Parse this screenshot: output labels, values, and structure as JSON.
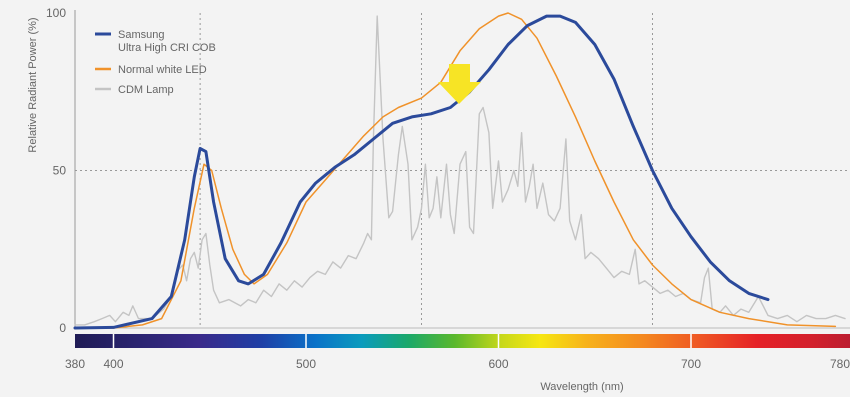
{
  "chart_data": {
    "type": "line",
    "xlabel": "Wavelength (nm)",
    "ylabel": "Relative Radiant Power (%)",
    "xlim": [
      380,
      780
    ],
    "ylim": [
      0,
      100
    ],
    "x_ticks": [
      380,
      400,
      500,
      600,
      700,
      780
    ],
    "y_ticks": [
      0,
      50,
      100
    ],
    "grid": "dotted at 445, 560, 680 nm and 50%",
    "legend_position": "top-left",
    "series": [
      {
        "name": "Samsung Ultra High CRI COB",
        "legend_lines": [
          "Samsung",
          "Ultra High CRI COB"
        ],
        "color": "#2b4a9b",
        "points": [
          [
            380,
            0
          ],
          [
            400,
            0.2
          ],
          [
            420,
            3
          ],
          [
            430,
            10
          ],
          [
            437,
            28
          ],
          [
            442,
            48
          ],
          [
            445,
            57
          ],
          [
            448,
            56
          ],
          [
            452,
            40
          ],
          [
            458,
            22
          ],
          [
            465,
            15
          ],
          [
            470,
            14
          ],
          [
            478,
            17
          ],
          [
            487,
            27
          ],
          [
            497,
            40
          ],
          [
            505,
            46
          ],
          [
            515,
            51
          ],
          [
            525,
            55
          ],
          [
            535,
            60
          ],
          [
            545,
            65
          ],
          [
            555,
            67
          ],
          [
            565,
            68
          ],
          [
            575,
            70
          ],
          [
            585,
            75
          ],
          [
            595,
            82
          ],
          [
            605,
            90
          ],
          [
            615,
            96
          ],
          [
            625,
            99
          ],
          [
            632,
            99
          ],
          [
            640,
            97
          ],
          [
            650,
            90
          ],
          [
            660,
            79
          ],
          [
            670,
            64
          ],
          [
            680,
            50
          ],
          [
            690,
            38
          ],
          [
            700,
            29
          ],
          [
            710,
            21
          ],
          [
            720,
            15
          ],
          [
            730,
            11
          ],
          [
            740,
            9
          ]
        ]
      },
      {
        "name": "Normal white LED",
        "color": "#f0922a",
        "points": [
          [
            380,
            0
          ],
          [
            400,
            0
          ],
          [
            415,
            1
          ],
          [
            425,
            3
          ],
          [
            435,
            15
          ],
          [
            442,
            38
          ],
          [
            447,
            52
          ],
          [
            451,
            50
          ],
          [
            456,
            38
          ],
          [
            462,
            25
          ],
          [
            468,
            17
          ],
          [
            473,
            14
          ],
          [
            480,
            17
          ],
          [
            490,
            27
          ],
          [
            500,
            40
          ],
          [
            510,
            47
          ],
          [
            520,
            54
          ],
          [
            530,
            61
          ],
          [
            540,
            67
          ],
          [
            548,
            70
          ],
          [
            560,
            73
          ],
          [
            570,
            78
          ],
          [
            580,
            88
          ],
          [
            590,
            95
          ],
          [
            600,
            99
          ],
          [
            605,
            100
          ],
          [
            612,
            98
          ],
          [
            620,
            92
          ],
          [
            630,
            80
          ],
          [
            640,
            67
          ],
          [
            650,
            53
          ],
          [
            660,
            40
          ],
          [
            670,
            28
          ],
          [
            680,
            20
          ],
          [
            690,
            14
          ],
          [
            700,
            9
          ],
          [
            715,
            5
          ],
          [
            730,
            3
          ],
          [
            750,
            1
          ],
          [
            775,
            0.5
          ]
        ]
      },
      {
        "name": "CDM Lamp",
        "color": "#c4c4c4",
        "points": [
          [
            380,
            1
          ],
          [
            385,
            1
          ],
          [
            390,
            2
          ],
          [
            394,
            3
          ],
          [
            398,
            4
          ],
          [
            401,
            2
          ],
          [
            405,
            5
          ],
          [
            408,
            4
          ],
          [
            410,
            7
          ],
          [
            413,
            3
          ],
          [
            420,
            3
          ],
          [
            426,
            6
          ],
          [
            430,
            10
          ],
          [
            433,
            18
          ],
          [
            436,
            20
          ],
          [
            438,
            15
          ],
          [
            440,
            22
          ],
          [
            442,
            24
          ],
          [
            444,
            19
          ],
          [
            446,
            28
          ],
          [
            448,
            30
          ],
          [
            450,
            20
          ],
          [
            452,
            12
          ],
          [
            455,
            8
          ],
          [
            460,
            9
          ],
          [
            466,
            7
          ],
          [
            470,
            9
          ],
          [
            474,
            8
          ],
          [
            478,
            12
          ],
          [
            482,
            10
          ],
          [
            486,
            14
          ],
          [
            490,
            12
          ],
          [
            494,
            15
          ],
          [
            498,
            13
          ],
          [
            502,
            16
          ],
          [
            506,
            18
          ],
          [
            510,
            17
          ],
          [
            514,
            21
          ],
          [
            518,
            19
          ],
          [
            522,
            23
          ],
          [
            526,
            22
          ],
          [
            530,
            27
          ],
          [
            532,
            30
          ],
          [
            534,
            28
          ],
          [
            535,
            60
          ],
          [
            537,
            99
          ],
          [
            540,
            60
          ],
          [
            543,
            35
          ],
          [
            545,
            37
          ],
          [
            548,
            55
          ],
          [
            550,
            64
          ],
          [
            553,
            52
          ],
          [
            555,
            28
          ],
          [
            558,
            32
          ],
          [
            560,
            38
          ],
          [
            562,
            52
          ],
          [
            564,
            35
          ],
          [
            566,
            38
          ],
          [
            568,
            48
          ],
          [
            570,
            35
          ],
          [
            573,
            52
          ],
          [
            575,
            36
          ],
          [
            577,
            30
          ],
          [
            580,
            52
          ],
          [
            583,
            56
          ],
          [
            585,
            32
          ],
          [
            587,
            30
          ],
          [
            590,
            68
          ],
          [
            592,
            70
          ],
          [
            595,
            62
          ],
          [
            597,
            38
          ],
          [
            600,
            53
          ],
          [
            602,
            40
          ],
          [
            605,
            44
          ],
          [
            608,
            50
          ],
          [
            610,
            45
          ],
          [
            612,
            62
          ],
          [
            614,
            40
          ],
          [
            616,
            45
          ],
          [
            618,
            52
          ],
          [
            620,
            38
          ],
          [
            623,
            46
          ],
          [
            626,
            36
          ],
          [
            629,
            34
          ],
          [
            632,
            38
          ],
          [
            635,
            60
          ],
          [
            637,
            34
          ],
          [
            640,
            28
          ],
          [
            643,
            36
          ],
          [
            645,
            22
          ],
          [
            648,
            24
          ],
          [
            652,
            22
          ],
          [
            656,
            19
          ],
          [
            660,
            16
          ],
          [
            664,
            18
          ],
          [
            668,
            17
          ],
          [
            671,
            25
          ],
          [
            673,
            14
          ],
          [
            676,
            15
          ],
          [
            680,
            13
          ],
          [
            684,
            11
          ],
          [
            688,
            12
          ],
          [
            692,
            10
          ],
          [
            696,
            11
          ],
          [
            700,
            9
          ],
          [
            705,
            8
          ],
          [
            707,
            16
          ],
          [
            709,
            19
          ],
          [
            711,
            6
          ],
          [
            715,
            5
          ],
          [
            718,
            7
          ],
          [
            722,
            4
          ],
          [
            726,
            6
          ],
          [
            730,
            5
          ],
          [
            735,
            10
          ],
          [
            740,
            4
          ],
          [
            745,
            3
          ],
          [
            750,
            4
          ],
          [
            755,
            2
          ],
          [
            760,
            4
          ],
          [
            765,
            3
          ],
          [
            770,
            3
          ],
          [
            775,
            4
          ],
          [
            780,
            3
          ]
        ]
      }
    ]
  }
}
